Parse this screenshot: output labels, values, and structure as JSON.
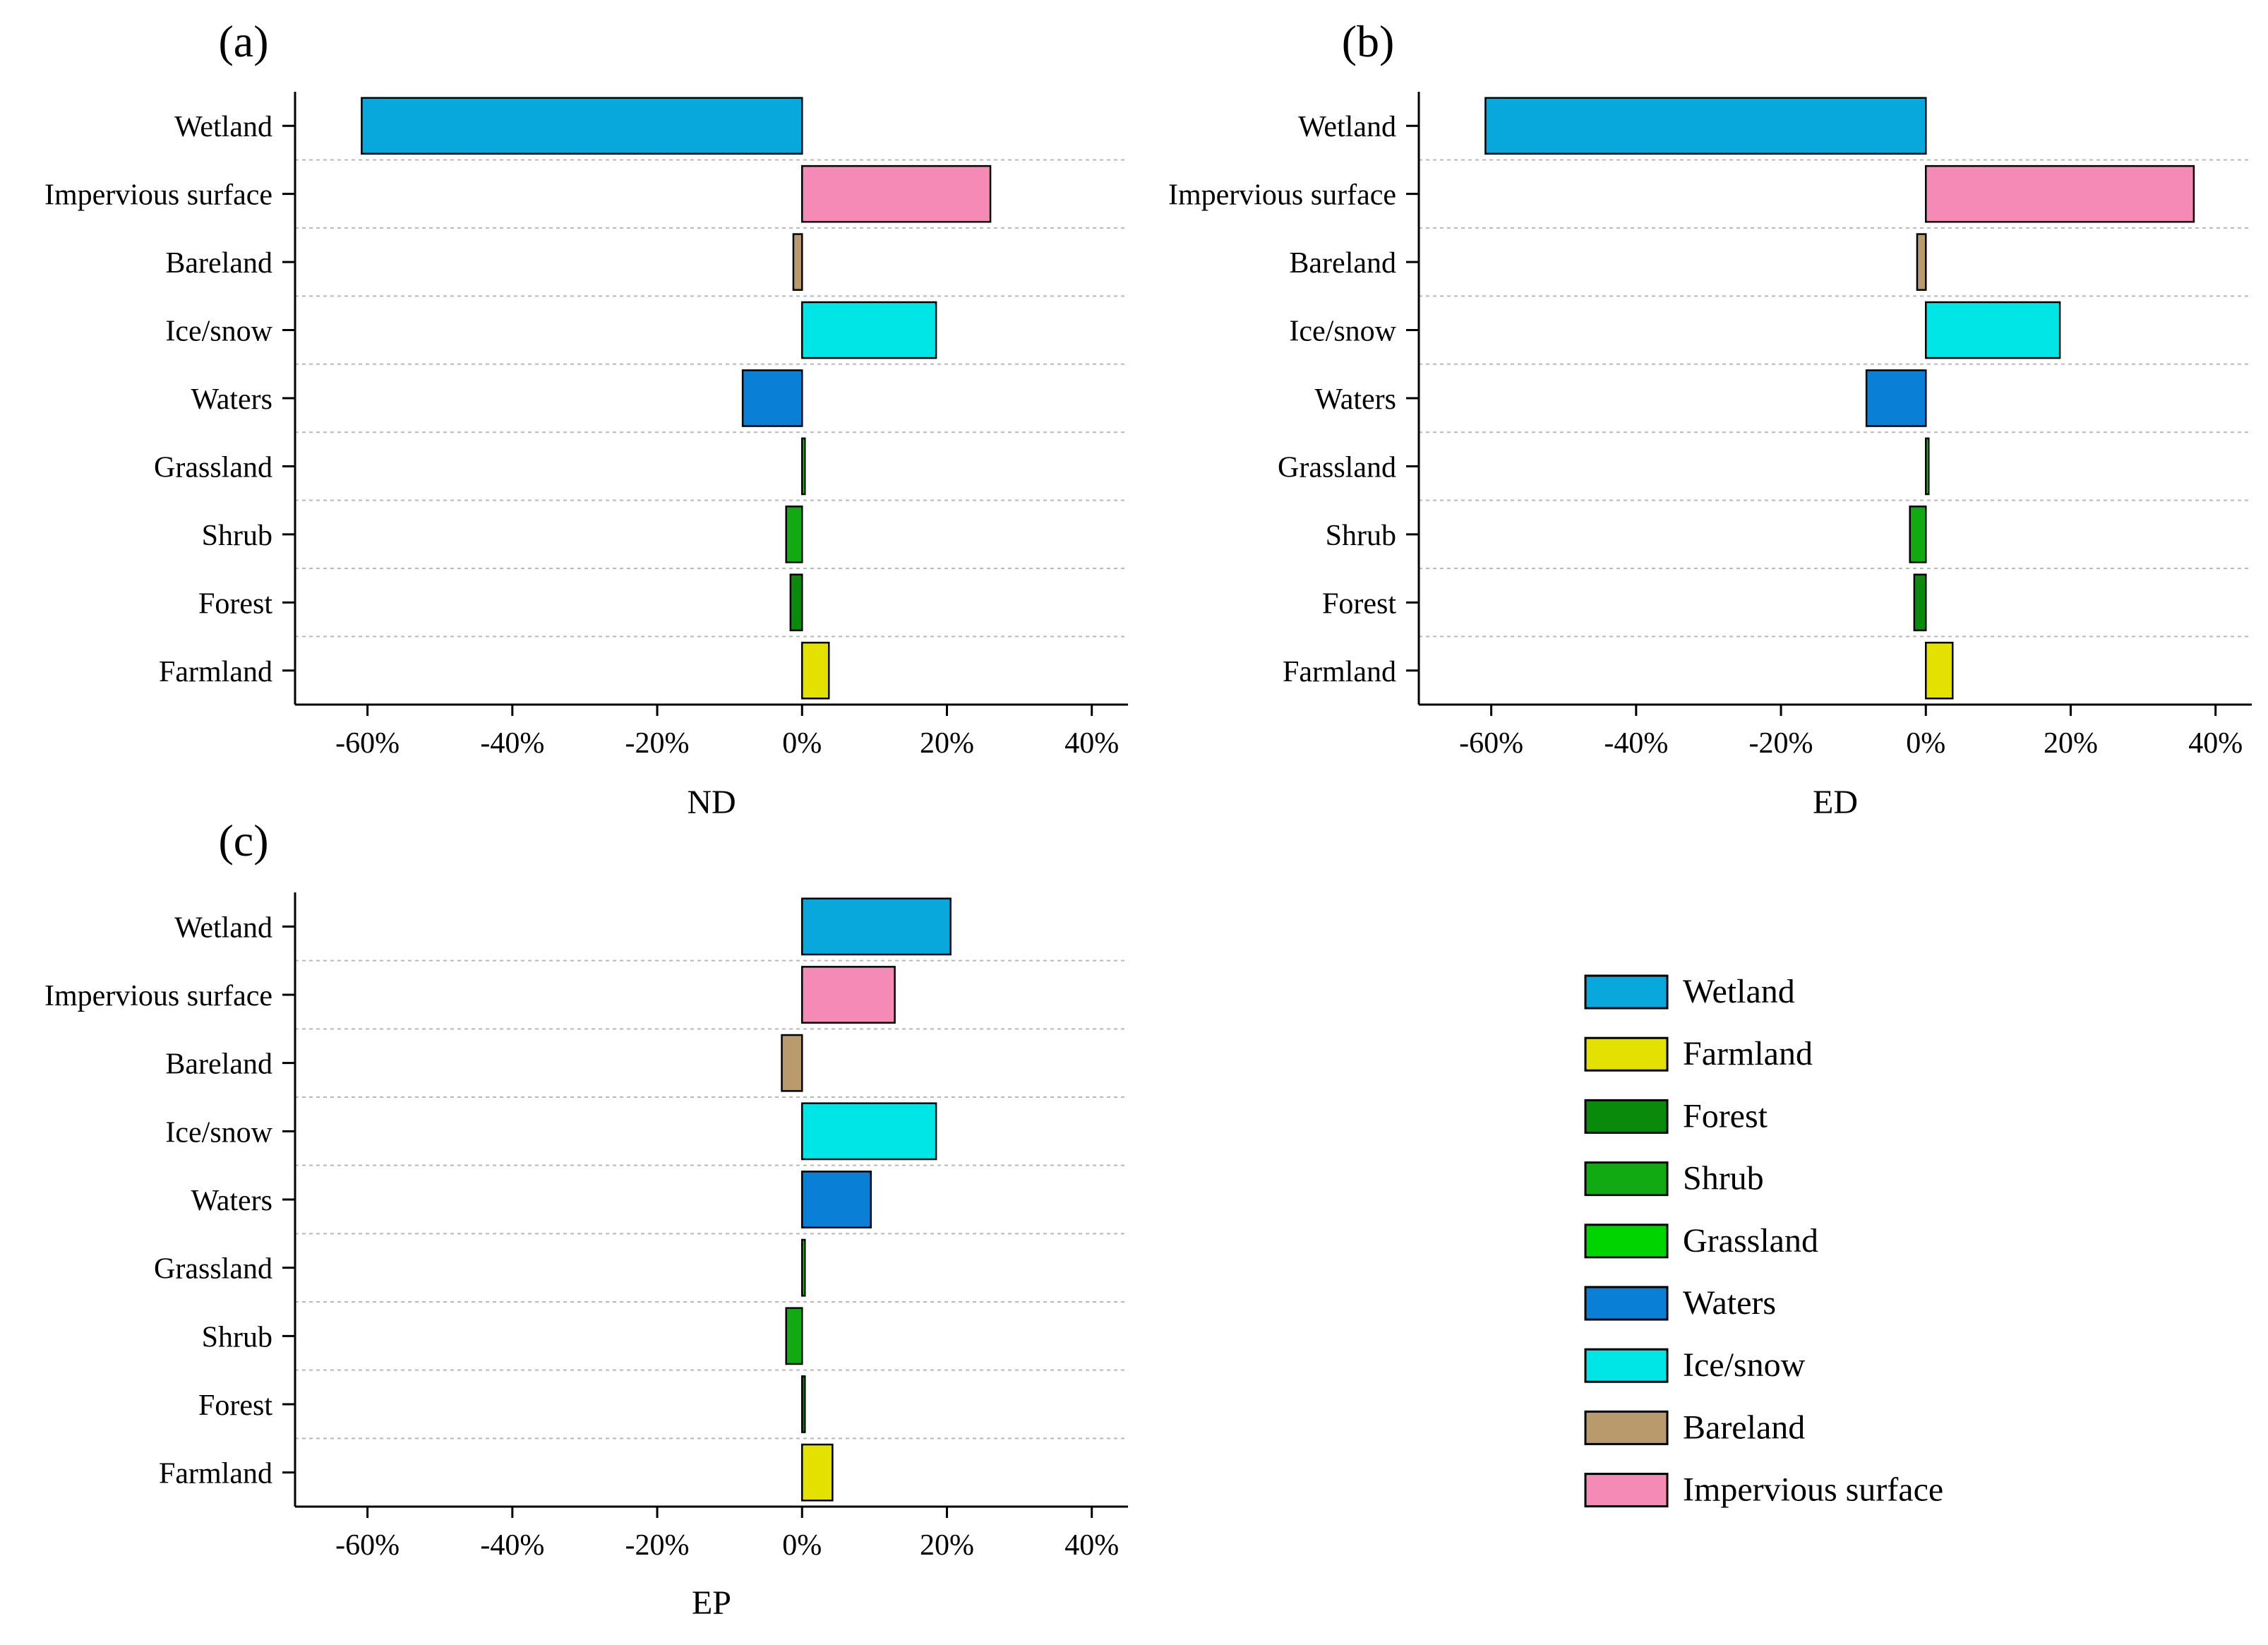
{
  "figure": {
    "categories": [
      "Wetland",
      "Impervious surface",
      "Bareland",
      "Ice/snow",
      "Waters",
      "Grassland",
      "Shrub",
      "Forest",
      "Farmland"
    ],
    "x_tick_labels": [
      "-60%",
      "-40%",
      "-20%",
      "0%",
      "20%",
      "40%"
    ],
    "colors": {
      "Wetland": "#08a8dc",
      "Farmland": "#e4e000",
      "Forest": "#0a8a0a",
      "Shrub": "#12aa12",
      "Grassland": "#00d400",
      "Waters": "#0a7fd6",
      "Ice/snow": "#00e6e6",
      "Bareland": "#b99a6c",
      "Impervious surface": "#f58ab6"
    }
  },
  "chart_data": [
    {
      "type": "bar",
      "orientation": "horizontal",
      "panel_label": "(a)",
      "xlabel": "ND",
      "xlim": [
        -70,
        45
      ],
      "xticks": [
        -60,
        -40,
        -20,
        0,
        20,
        40
      ],
      "categories": [
        "Wetland",
        "Impervious surface",
        "Bareland",
        "Ice/snow",
        "Waters",
        "Grassland",
        "Shrub",
        "Forest",
        "Farmland"
      ],
      "values": [
        -60.8,
        26.0,
        -1.2,
        18.5,
        -8.2,
        0.3,
        -2.2,
        -1.6,
        3.7
      ]
    },
    {
      "type": "bar",
      "orientation": "horizontal",
      "panel_label": "(b)",
      "xlabel": "ED",
      "xlim": [
        -70,
        45
      ],
      "xticks": [
        -60,
        -40,
        -20,
        0,
        20,
        40
      ],
      "categories": [
        "Wetland",
        "Impervious surface",
        "Bareland",
        "Ice/snow",
        "Waters",
        "Grassland",
        "Shrub",
        "Forest",
        "Farmland"
      ],
      "values": [
        -60.8,
        37.0,
        -1.2,
        18.5,
        -8.2,
        0.3,
        -2.2,
        -1.6,
        3.7
      ]
    },
    {
      "type": "bar",
      "orientation": "horizontal",
      "panel_label": "(c)",
      "xlabel": "EP",
      "xlim": [
        -70,
        45
      ],
      "xticks": [
        -60,
        -40,
        -20,
        0,
        20,
        40
      ],
      "categories": [
        "Wetland",
        "Impervious surface",
        "Bareland",
        "Ice/snow",
        "Waters",
        "Grassland",
        "Shrub",
        "Forest",
        "Farmland"
      ],
      "values": [
        20.5,
        12.8,
        -2.8,
        18.5,
        9.5,
        0.2,
        -2.2,
        0.0,
        4.2
      ]
    }
  ],
  "legend": {
    "items": [
      "Wetland",
      "Farmland",
      "Forest",
      "Shrub",
      "Grassland",
      "Waters",
      "Ice/snow",
      "Bareland",
      "Impervious surface"
    ]
  }
}
